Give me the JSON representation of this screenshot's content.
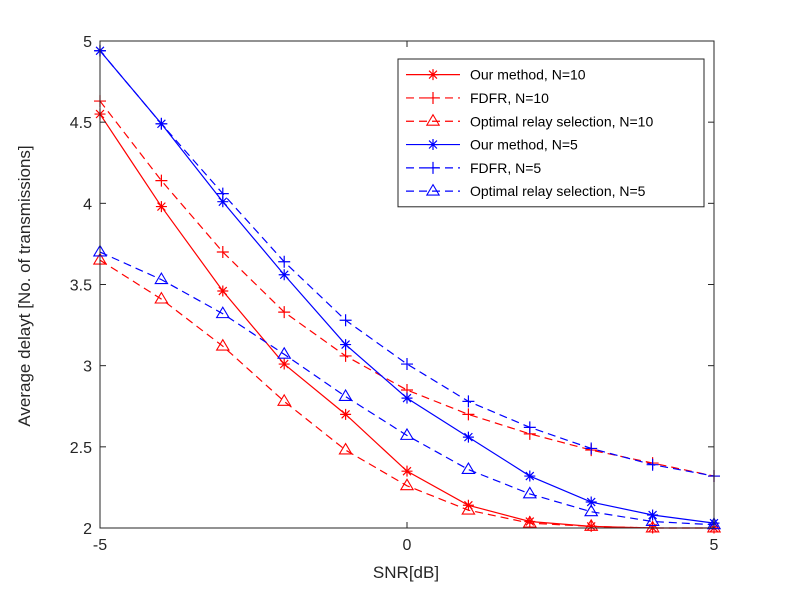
{
  "chart_data": {
    "type": "line",
    "title": "",
    "xlabel": "SNR[dB]",
    "ylabel": "Average delayt [No. of transmissions]",
    "xlim": [
      -5,
      5
    ],
    "ylim": [
      2,
      5
    ],
    "grid": false,
    "legend_position": "top-right",
    "x": [
      -5,
      -4,
      -3,
      -2,
      -1,
      0,
      1,
      2,
      3,
      4,
      5
    ],
    "x_ticks": [
      -5,
      0,
      5
    ],
    "y_ticks": [
      2,
      2.5,
      3,
      3.5,
      4,
      4.5,
      5
    ],
    "x_tick_labels": [
      "-5",
      "0",
      "5"
    ],
    "y_tick_labels": [
      "2",
      "2.5",
      "3",
      "3.5",
      "4",
      "4.5",
      "5"
    ],
    "series": [
      {
        "name": "Our method, N=10",
        "color": "#ff0000",
        "line": "solid",
        "marker": "asterisk",
        "values": [
          4.55,
          3.98,
          3.46,
          3.01,
          2.7,
          2.35,
          2.14,
          2.04,
          2.01,
          2.0,
          2.0
        ]
      },
      {
        "name": "FDFR, N=10",
        "color": "#ff0000",
        "line": "dashed",
        "marker": "plus",
        "values": [
          4.63,
          4.14,
          3.7,
          3.33,
          3.06,
          2.85,
          2.7,
          2.58,
          2.48,
          2.4,
          2.32
        ]
      },
      {
        "name": "Optimal relay selection, N=10",
        "color": "#ff0000",
        "line": "dashed",
        "marker": "triangle",
        "values": [
          3.65,
          3.41,
          3.12,
          2.78,
          2.48,
          2.26,
          2.11,
          2.03,
          2.01,
          2.0,
          2.0
        ]
      },
      {
        "name": "Our method, N=5",
        "color": "#0000ff",
        "line": "solid",
        "marker": "asterisk",
        "values": [
          4.94,
          4.49,
          4.01,
          3.56,
          3.13,
          2.8,
          2.56,
          2.32,
          2.16,
          2.08,
          2.03
        ]
      },
      {
        "name": "FDFR, N=5",
        "color": "#0000ff",
        "line": "dashed",
        "marker": "plus",
        "values": [
          4.94,
          4.49,
          4.06,
          3.64,
          3.28,
          3.01,
          2.78,
          2.62,
          2.49,
          2.39,
          2.32
        ]
      },
      {
        "name": "Optimal relay selection, N=5",
        "color": "#0000ff",
        "line": "dashed",
        "marker": "triangle",
        "values": [
          3.7,
          3.53,
          3.32,
          3.07,
          2.81,
          2.57,
          2.36,
          2.21,
          2.1,
          2.04,
          2.02
        ]
      }
    ]
  }
}
